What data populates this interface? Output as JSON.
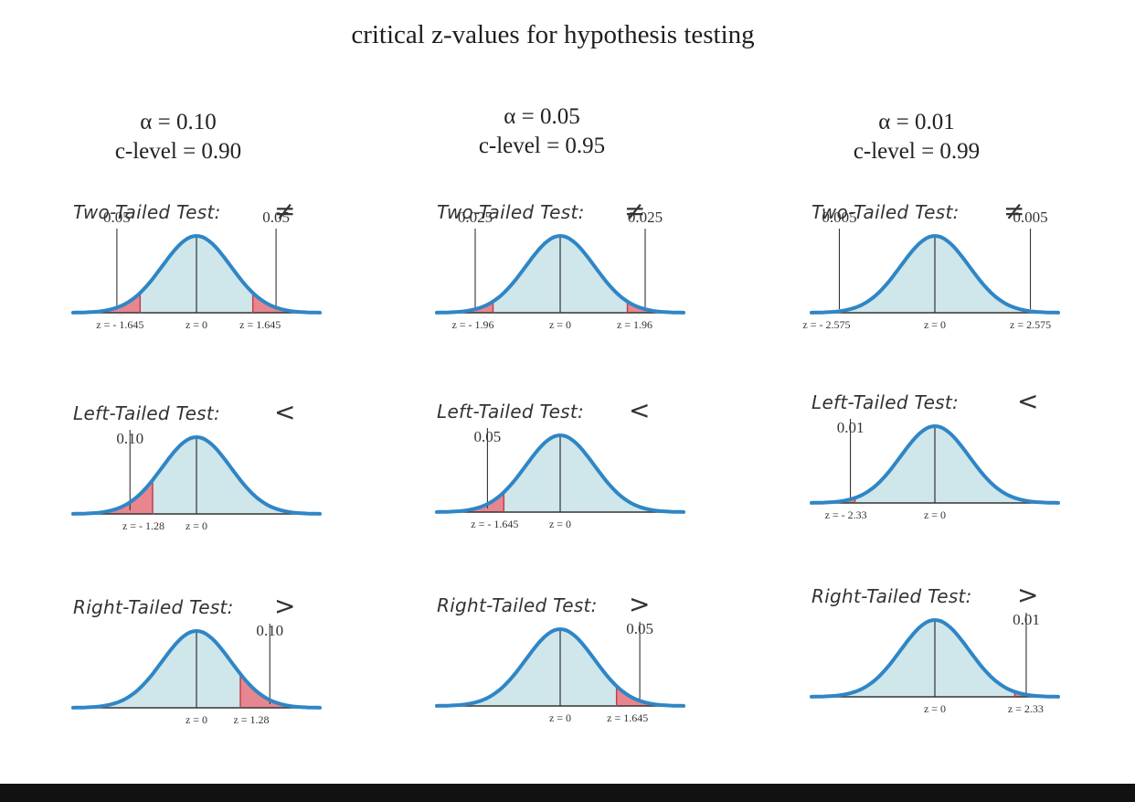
{
  "title": "critical z-values for hypothesis testing",
  "colors": {
    "curve": "#2f86c6",
    "fill": "#cfe6ea",
    "tail": "#e8868f",
    "axis": "#333333"
  },
  "columns": [
    {
      "alpha": "α = 0.10",
      "clevel": "c-level = 0.90",
      "two": {
        "label": "Two-Tailed Test:",
        "symbol": "≠",
        "left_area": "0.05",
        "right_area": "0.05",
        "z_left": "z = - 1.645",
        "z_mid": "z = 0",
        "z_right": "z = 1.645",
        "z_left_value": -1.645,
        "z_right_value": 1.645
      },
      "left": {
        "label": "Left-Tailed Test:",
        "symbol": "<",
        "area": "0.10",
        "z_crit": "z = - 1.28",
        "z_mid": "z = 0",
        "z_value": -1.28
      },
      "right": {
        "label": "Right-Tailed Test:",
        "symbol": ">",
        "area": "0.10",
        "z_mid": "z = 0",
        "z_crit": "z = 1.28",
        "z_value": 1.28
      }
    },
    {
      "alpha": "α = 0.05",
      "clevel": "c-level = 0.95",
      "two": {
        "label": "Two-Tailed Test:",
        "symbol": "≠",
        "left_area": "0.025",
        "right_area": "0.025",
        "z_left": "z = - 1.96",
        "z_mid": "z = 0",
        "z_right": "z = 1.96",
        "z_left_value": -1.96,
        "z_right_value": 1.96
      },
      "left": {
        "label": "Left-Tailed Test:",
        "symbol": "<",
        "area": "0.05",
        "z_crit": "z = - 1.645",
        "z_mid": "z = 0",
        "z_value": -1.645
      },
      "right": {
        "label": "Right-Tailed Test:",
        "symbol": ">",
        "area": "0.05",
        "z_mid": "z = 0",
        "z_crit": "z = 1.645",
        "z_value": 1.645
      }
    },
    {
      "alpha": "α = 0.01",
      "clevel": "c-level = 0.99",
      "two": {
        "label": "Two-Tailed Test:",
        "symbol": "≠",
        "left_area": "0.005",
        "right_area": "0.005",
        "z_left": "z = - 2.575",
        "z_mid": "z = 0",
        "z_right": "z = 2.575",
        "z_left_value": -2.575,
        "z_right_value": 2.575
      },
      "left": {
        "label": "Left-Tailed Test:",
        "symbol": "<",
        "area": "0.01",
        "z_crit": "z = - 2.33",
        "z_mid": "z = 0",
        "z_value": -2.33
      },
      "right": {
        "label": "Right-Tailed Test:",
        "symbol": ">",
        "area": "0.01",
        "z_mid": "z = 0",
        "z_crit": "z = 2.33",
        "z_value": 2.33
      }
    }
  ]
}
